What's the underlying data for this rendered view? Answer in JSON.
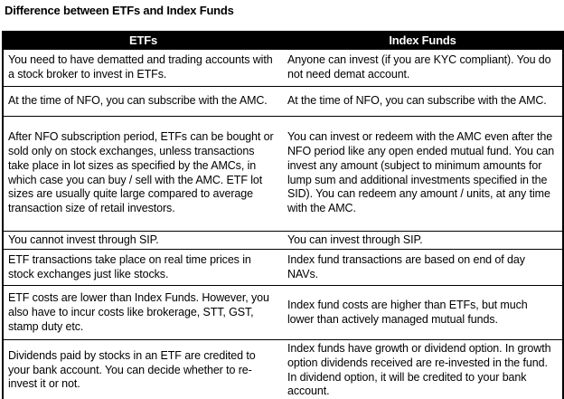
{
  "title": "Difference between ETFs and Index Funds",
  "table": {
    "headers": [
      "ETFs",
      "Index Funds"
    ],
    "rows": [
      {
        "etf": "You need to have dematted and trading accounts with a stock broker to invest in ETFs.",
        "index": "Anyone can invest (if you are KYC compliant). You do not need demat account."
      },
      {
        "etf": "At the time of NFO, you can subscribe with the AMC.",
        "index": "At the time of NFO, you can subscribe with the AMC."
      },
      {
        "etf": "After NFO subscription period, ETFs can be bought or sold only on stock exchanges, unless transactions take place in lot sizes as specified by the AMCs, in which case you can buy / sell with the AMC. ETF lot sizes are usually quite large compared to average transaction size of retail investors.",
        "index": "You can invest or redeem with the AMC even after the NFO period like any open ended mutual fund. You can invest any amount (subject to minimum amounts for lump sum and additional investments specified in the SID). You can redeem any amount / units, at any time with the AMC."
      },
      {
        "etf": "You cannot invest through SIP.",
        "index": "You can invest through SIP."
      },
      {
        "etf": "ETF transactions take place on real time prices in stock exchanges just like stocks.",
        "index": "Index fund transactions are based on end of day NAVs."
      },
      {
        "etf": "ETF costs are lower than Index Funds. However, you also have to incur costs like brokerage, STT, GST, stamp duty etc.",
        "index": "Index fund costs are higher than ETFs, but much lower than actively managed mutual funds."
      },
      {
        "etf": "Dividends paid by stocks in an ETF are credited to your bank account. You can decide whether to re-invest it or not.",
        "index": "Index funds have growth or dividend option. In growth option dividends received are re-invested in the fund. In dividend option, it will be credited to your bank account."
      }
    ]
  },
  "colors": {
    "header_bg": "#000000",
    "header_text": "#ffffff",
    "border": "#000000",
    "body_text": "#000000",
    "background": "#ffffff"
  }
}
